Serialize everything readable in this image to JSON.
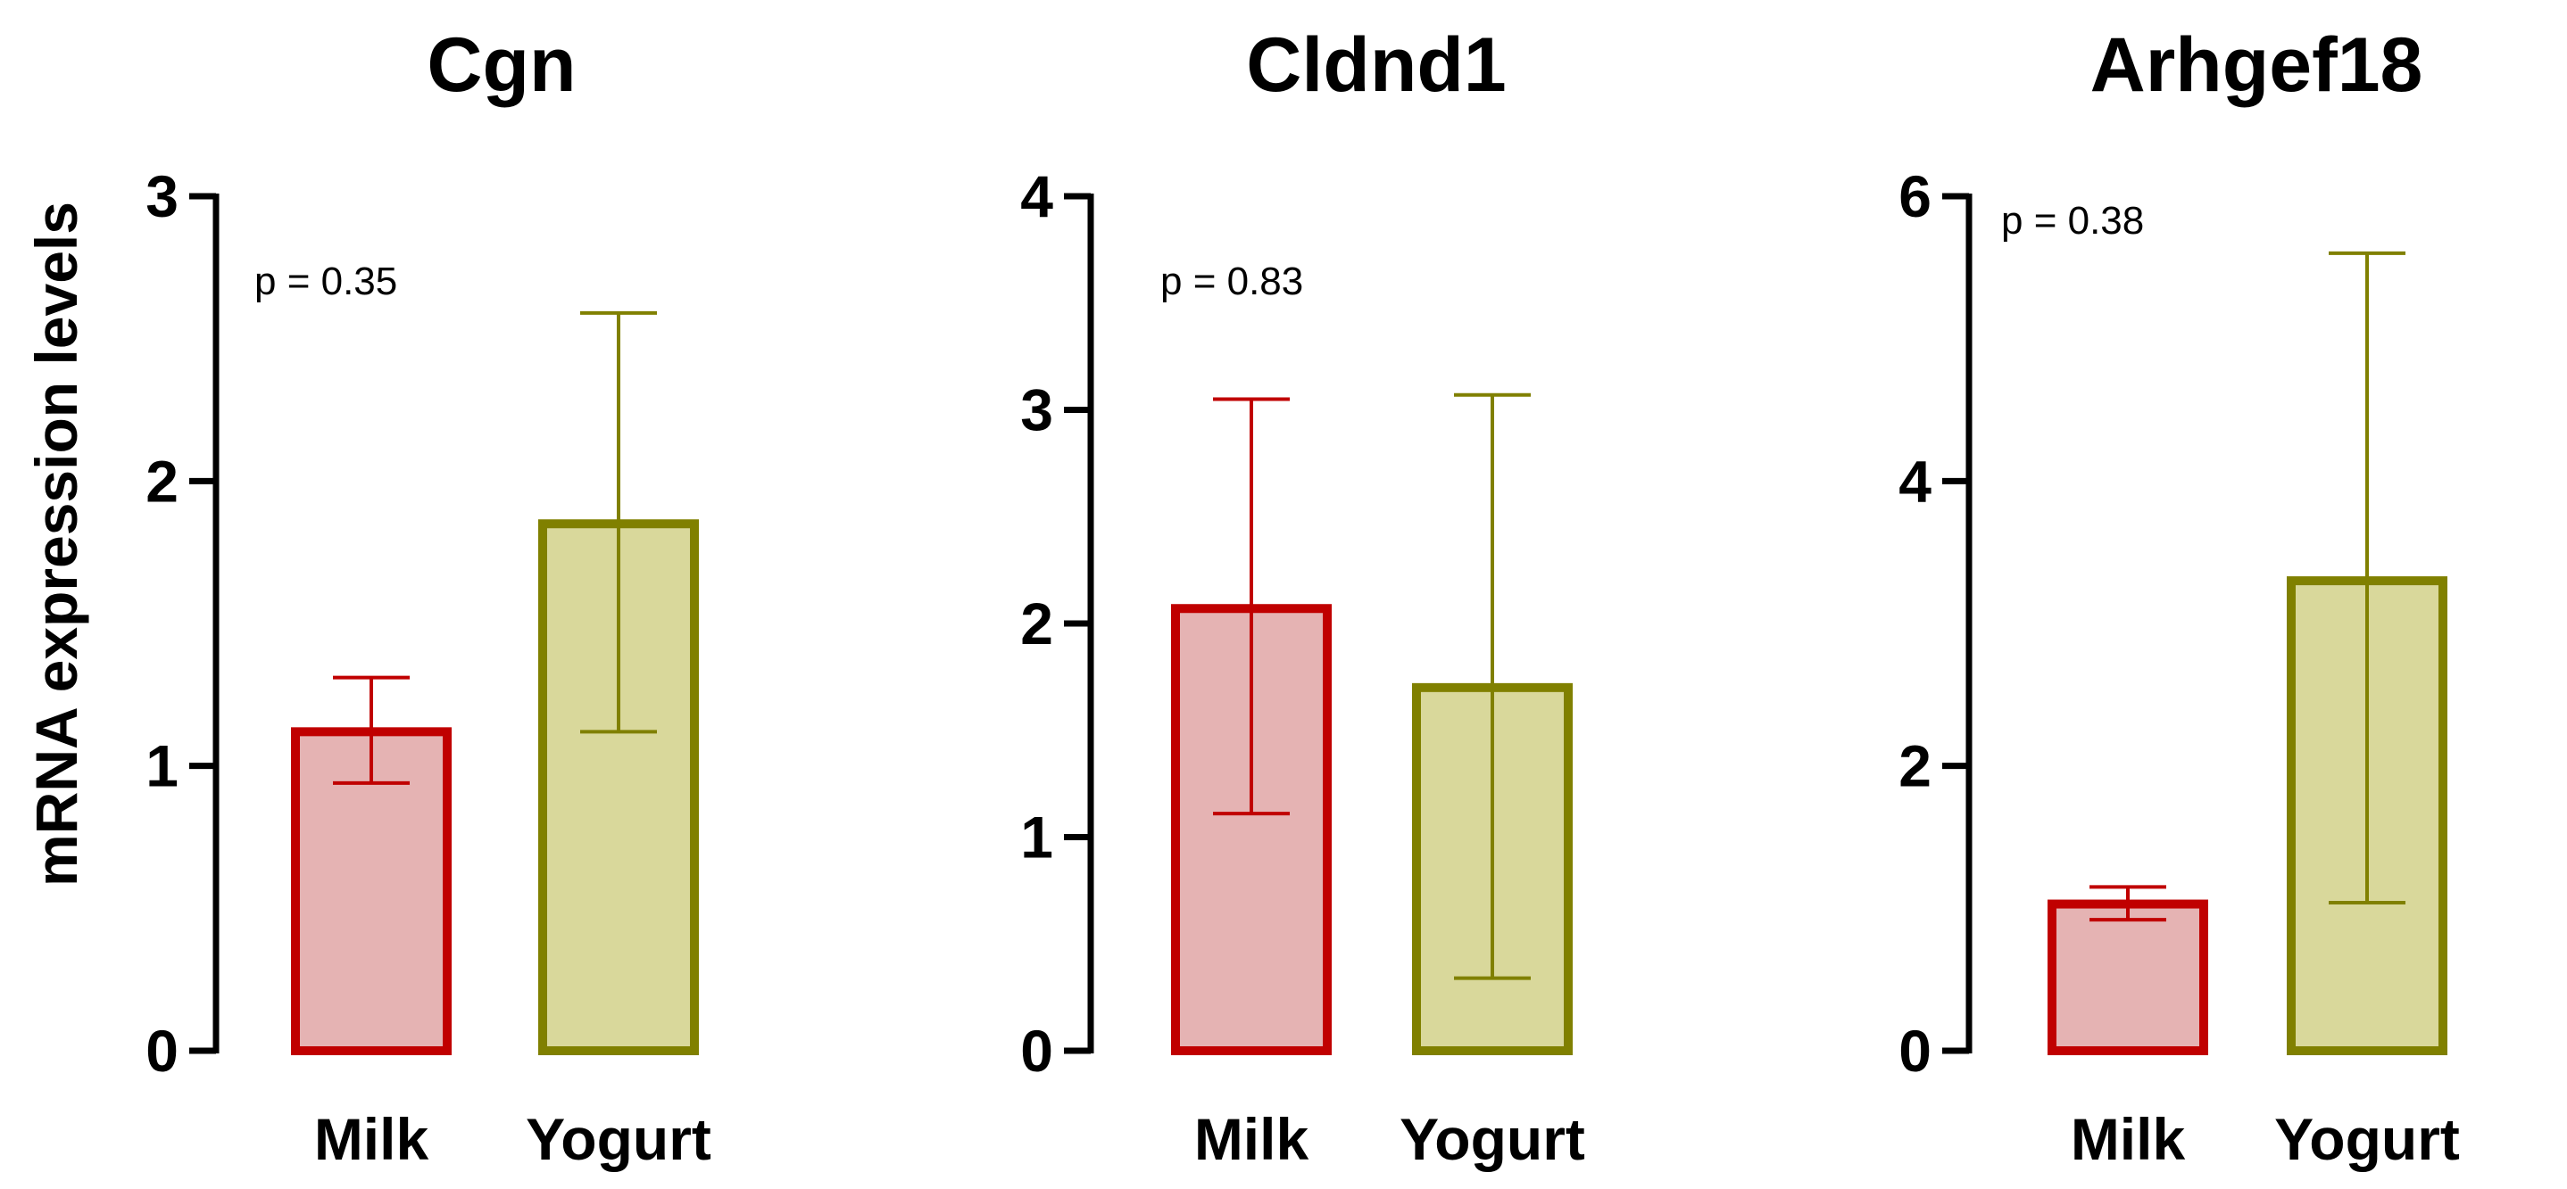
{
  "ylabel": "mRNA expression levels",
  "colors": {
    "milk_fill": "#e5b3b3",
    "milk_stroke": "#c00000",
    "yogurt_fill": "#d9d89b",
    "yogurt_stroke": "#808000",
    "axis": "#000000"
  },
  "chart_data": [
    {
      "type": "bar",
      "title": "Cgn",
      "categories": [
        "Milk",
        "Yogurt"
      ],
      "values": [
        1.12,
        1.85
      ],
      "error_low": [
        0.94,
        1.12
      ],
      "error_high": [
        1.31,
        2.59
      ],
      "ylim": [
        0,
        3
      ],
      "yticks": [
        0,
        1,
        2,
        3
      ],
      "annotation": "p = 0.35",
      "ylabel": "mRNA expression levels"
    },
    {
      "type": "bar",
      "title": "Cldnd1",
      "categories": [
        "Milk",
        "Yogurt"
      ],
      "values": [
        2.07,
        1.7
      ],
      "error_low": [
        1.11,
        0.34
      ],
      "error_high": [
        3.05,
        3.07
      ],
      "ylim": [
        0,
        4
      ],
      "yticks": [
        0,
        1,
        2,
        3,
        4
      ],
      "annotation": "p = 0.83",
      "ylabel": ""
    },
    {
      "type": "bar",
      "title": "Arhgef18",
      "categories": [
        "Milk",
        "Yogurt"
      ],
      "values": [
        1.03,
        3.3
      ],
      "error_low": [
        0.92,
        1.04
      ],
      "error_high": [
        1.15,
        5.6
      ],
      "ylim": [
        0,
        6
      ],
      "yticks": [
        0,
        2,
        4,
        6
      ],
      "annotation": "p = 0.38",
      "ylabel": ""
    }
  ]
}
